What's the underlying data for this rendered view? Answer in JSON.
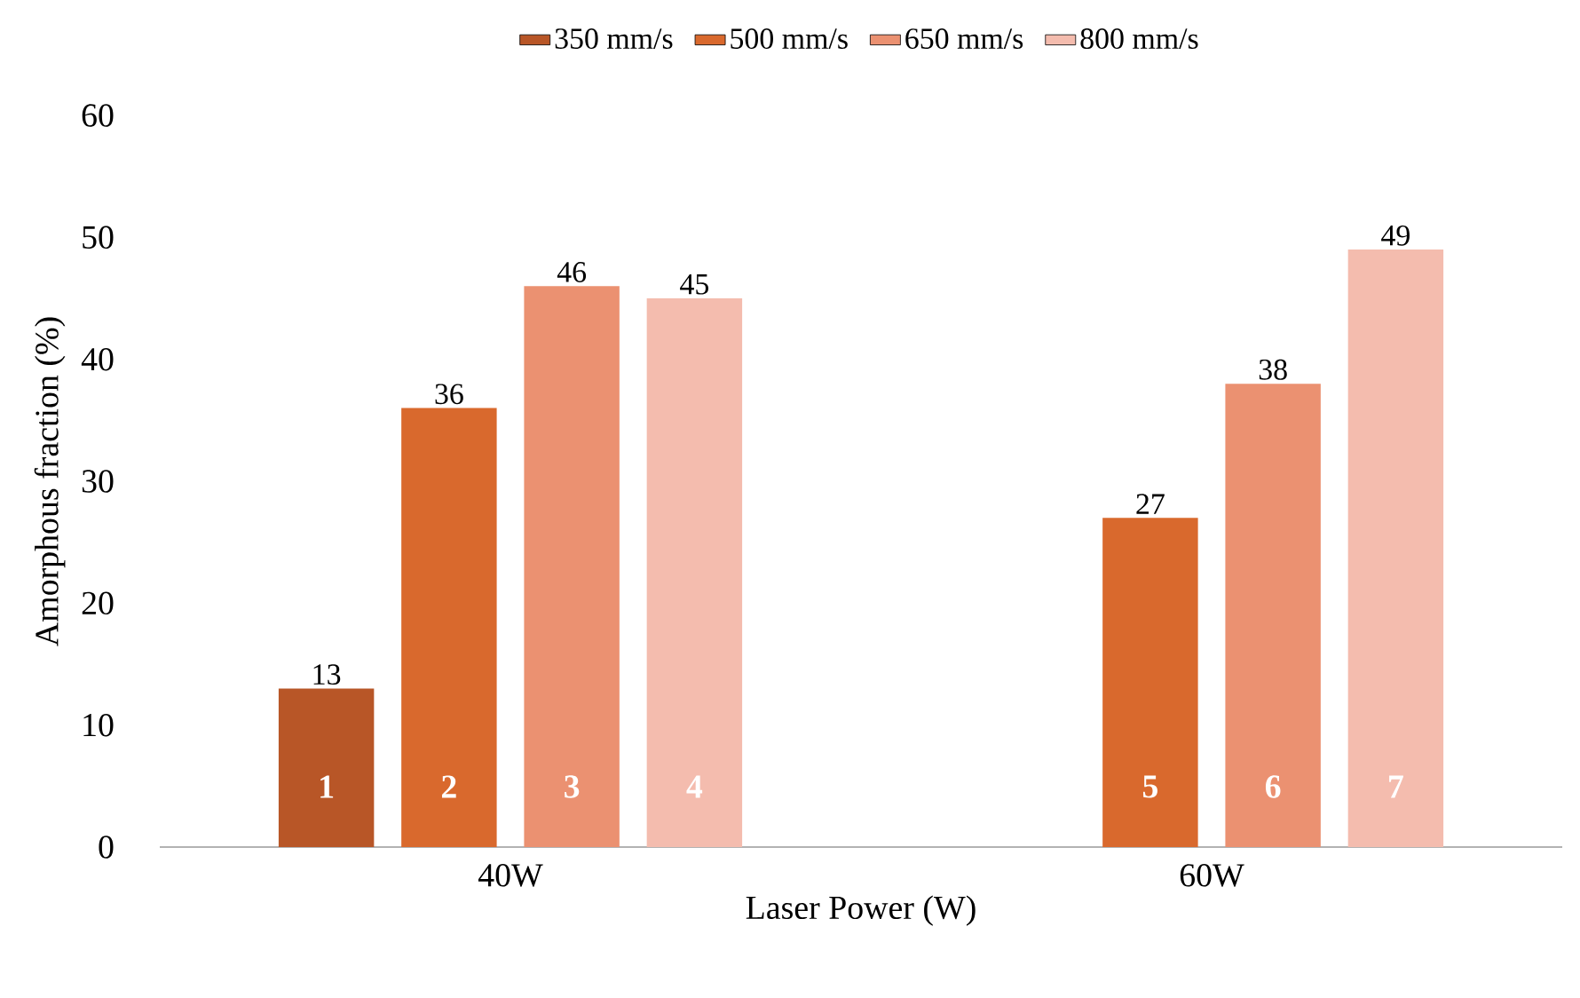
{
  "chart_data": {
    "type": "bar",
    "categories": [
      "40W",
      "60W"
    ],
    "series": [
      {
        "name": "350 mm/s",
        "color": "#b85627",
        "values": [
          13,
          null
        ]
      },
      {
        "name": "500 mm/s",
        "color": "#d9692d",
        "values": [
          36,
          27
        ]
      },
      {
        "name": "650 mm/s",
        "color": "#eb9171",
        "values": [
          46,
          38
        ]
      },
      {
        "name": "800 mm/s",
        "color": "#f4bcae",
        "values": [
          45,
          49
        ]
      }
    ],
    "xlabel": "Laser Power (W)",
    "ylabel": "Amorphous fraction (%)",
    "ylim": [
      0,
      60
    ],
    "yticks": [
      0,
      10,
      20,
      30,
      40,
      50,
      60
    ],
    "data_labels": true,
    "legend": "top",
    "grid": false,
    "annotations": [
      "1",
      "2",
      "3",
      "4",
      "5",
      "6",
      "7"
    ]
  }
}
